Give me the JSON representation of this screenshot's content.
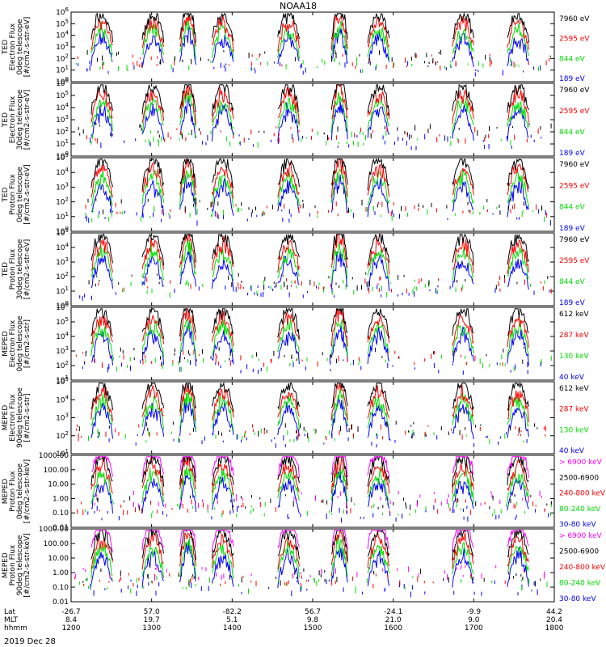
{
  "chart_data": {
    "type": "stacked-line",
    "title": "NOAA18",
    "date_label": "2019 Dec 28",
    "x_rows": [
      {
        "name": "Lat",
        "values": [
          "-26.7",
          "57.0",
          "-82.2",
          "56.7",
          "-24.1",
          "-9.9",
          "44.2"
        ]
      },
      {
        "name": "MLT",
        "values": [
          "8.4",
          "19.7",
          "5.1",
          "9.8",
          "21.0",
          "9.0",
          "20.4"
        ]
      },
      {
        "name": "hhmm",
        "values": [
          "1200",
          "1300",
          "1400",
          "1500",
          "1600",
          "1700",
          "1800"
        ]
      }
    ],
    "x_time_range": [
      1200,
      1800
    ],
    "passes": [
      {
        "center": 1223,
        "half_width": 8,
        "active": true
      },
      {
        "center": 1301,
        "half_width": 8,
        "active": true
      },
      {
        "center": 1327,
        "half_width": 6,
        "active": true,
        "dip": true
      },
      {
        "center": 1353,
        "half_width": 8,
        "active": true
      },
      {
        "center": 1442,
        "half_width": 8,
        "active": true
      },
      {
        "center": 1520,
        "half_width": 6,
        "active": true,
        "dip": true
      },
      {
        "center": 1549,
        "half_width": 8,
        "active": true
      },
      {
        "center": 1652,
        "half_width": 8,
        "active": true
      },
      {
        "center": 1733,
        "half_width": 8,
        "active": true
      }
    ],
    "panels": [
      {
        "ylabel": [
          "TED",
          "Electron Flux",
          "0deg telescope",
          "[#/cm2-s-str-eV]"
        ],
        "yticks": [
          "10^6",
          "10^5",
          "10^4",
          "10^3",
          "10^2",
          "10^1",
          "10^0"
        ],
        "ylim_log": [
          0,
          6
        ],
        "legend": [
          {
            "label": "7960 eV",
            "color": "#000000"
          },
          {
            "label": "2595 eV",
            "color": "#ff0000"
          },
          {
            "label": "844 eV",
            "color": "#00dd00"
          },
          {
            "label": "189 eV",
            "color": "#0000ff"
          }
        ]
      },
      {
        "ylabel": [
          "TED",
          "Electron Flux",
          "30deg telescope",
          "[#/cm2-s-str-eV]"
        ],
        "yticks": [
          "10^6",
          "10^5",
          "10^4",
          "10^3",
          "10^2",
          "10^1",
          "10^0"
        ],
        "ylim_log": [
          0,
          6
        ],
        "legend": [
          {
            "label": "7960 eV",
            "color": "#000000"
          },
          {
            "label": "2595 eV",
            "color": "#ff0000"
          },
          {
            "label": "844 eV",
            "color": "#00dd00"
          },
          {
            "label": "189 eV",
            "color": "#0000ff"
          }
        ]
      },
      {
        "ylabel": [
          "TED",
          "Proton Flux",
          "0deg telescope",
          "[#/cm2-s-str-eV]"
        ],
        "yticks": [
          "10^5",
          "10^4",
          "10^3",
          "10^2",
          "10^1",
          "10^0"
        ],
        "ylim_log": [
          0,
          5
        ],
        "legend": [
          {
            "label": "7960 eV",
            "color": "#000000"
          },
          {
            "label": "2595 eV",
            "color": "#ff0000"
          },
          {
            "label": "844 eV",
            "color": "#00dd00"
          },
          {
            "label": "189 eV",
            "color": "#0000ff"
          }
        ]
      },
      {
        "ylabel": [
          "TED",
          "Proton Flux",
          "30deg telescope",
          "[#/cm2-s-str-eV]"
        ],
        "yticks": [
          "10^5",
          "10^4",
          "10^3",
          "10^2",
          "10^1",
          "10^0"
        ],
        "ylim_log": [
          0,
          5
        ],
        "legend": [
          {
            "label": "7960 eV",
            "color": "#000000"
          },
          {
            "label": "2595 eV",
            "color": "#ff0000"
          },
          {
            "label": "844 eV",
            "color": "#00dd00"
          },
          {
            "label": "189 eV",
            "color": "#0000ff"
          }
        ]
      },
      {
        "ylabel": [
          "MEPED",
          "Electron Flux",
          "0deg telescope",
          "[#/cm2-s-str]"
        ],
        "yticks": [
          "10^6",
          "10^5",
          "10^4",
          "10^3",
          "10^2",
          "10^1"
        ],
        "ylim_log": [
          1,
          6
        ],
        "legend": [
          {
            "label": "612 keV",
            "color": "#000000"
          },
          {
            "label": "287 keV",
            "color": "#ff0000"
          },
          {
            "label": "130 keV",
            "color": "#00dd00"
          },
          {
            "label": "40 keV",
            "color": "#0000ff"
          }
        ]
      },
      {
        "ylabel": [
          "MEPED",
          "Electron Flux",
          "90deg telescope",
          "[#/cm2-s-str]"
        ],
        "yticks": [
          "10^5",
          "10^4",
          "10^3",
          "10^2",
          "10^1"
        ],
        "ylim_log": [
          1,
          5
        ],
        "legend": [
          {
            "label": "612 keV",
            "color": "#000000"
          },
          {
            "label": "287 keV",
            "color": "#ff0000"
          },
          {
            "label": "130 keV",
            "color": "#00dd00"
          },
          {
            "label": "40 keV",
            "color": "#0000ff"
          }
        ]
      },
      {
        "ylabel": [
          "MEPED",
          "Proton Flux",
          "0deg telescope",
          "[#/cm2-s-str-keV]"
        ],
        "yticks": [
          "1000.00",
          "100.00",
          "10.00",
          "1.00",
          "0.10",
          "0.01"
        ],
        "ylim_log": [
          -2,
          3
        ],
        "legend": [
          {
            "label": "> 6900 keV",
            "color": "#ff00ff"
          },
          {
            "label": "2500-6900",
            "color": "#000000"
          },
          {
            "label": "240-800 keV",
            "color": "#ff0000"
          },
          {
            "label": "80-240 keV",
            "color": "#00dd00"
          },
          {
            "label": "30-80 keV",
            "color": "#0000ff"
          }
        ]
      },
      {
        "ylabel": [
          "MEPED",
          "Proton Flux",
          "90deg telescope",
          "[#/cm2-s-str-keV]"
        ],
        "yticks": [
          "1000.00",
          "100.00",
          "10.00",
          "1.00",
          "0.10",
          "0.01"
        ],
        "ylim_log": [
          -2,
          3
        ],
        "legend": [
          {
            "label": "> 6900 keV",
            "color": "#ff00ff"
          },
          {
            "label": "2500-6900",
            "color": "#000000"
          },
          {
            "label": "240-800 keV",
            "color": "#ff0000"
          },
          {
            "label": "80-240 keV",
            "color": "#00dd00"
          },
          {
            "label": "30-80 keV",
            "color": "#0000ff"
          }
        ]
      }
    ]
  }
}
